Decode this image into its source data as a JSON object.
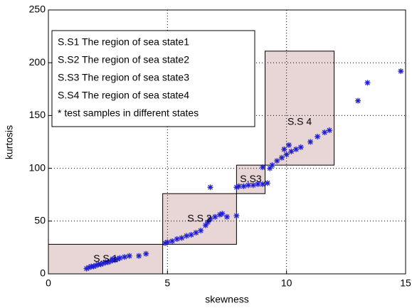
{
  "chart_data": {
    "type": "scatter",
    "xlabel": "skewness",
    "ylabel": "kurtosis",
    "xlim": [
      0,
      15
    ],
    "ylim": [
      0,
      250
    ],
    "xticks": [
      0,
      5,
      10,
      15
    ],
    "yticks": [
      0,
      50,
      100,
      150,
      200,
      250
    ],
    "grid": true,
    "legend": [
      "S.S1 The region of sea state1",
      "S.S2 The region of sea state2",
      "S.S3 The region of sea state3",
      "S.S4 The region of sea state4",
      "* test samples in different states"
    ],
    "regions": [
      {
        "label": "S.S 1",
        "x": [
          0,
          4.8
        ],
        "y": [
          0,
          28
        ],
        "color": "#e8d5d5"
      },
      {
        "label": "S.S 2",
        "x": [
          4.8,
          7.9
        ],
        "y": [
          28,
          76
        ],
        "color": "#e8d5d5"
      },
      {
        "label": "S.S3",
        "x": [
          7.9,
          9.1
        ],
        "y": [
          76,
          103
        ],
        "color": "#e8d5d5"
      },
      {
        "label": "S.S 4",
        "x": [
          9.1,
          12
        ],
        "y": [
          103,
          211
        ],
        "color": "#e8d5d5"
      }
    ],
    "series": [
      {
        "color": "#1f1fd0",
        "x": [
          1.6,
          1.7,
          1.8,
          1.9,
          2.0,
          2.1,
          2.2,
          2.3,
          2.4,
          2.5,
          2.6,
          2.7,
          2.8,
          2.9,
          3.0,
          3.2,
          3.4,
          3.8,
          4.1,
          2.7,
          4.9,
          5.0,
          5.2,
          5.4,
          5.6,
          5.8,
          6.0,
          6.2,
          6.4,
          6.6,
          6.7,
          6.8,
          7.0,
          7.2,
          7.3,
          7.5,
          6.8,
          7.9,
          7.9,
          8.0,
          8.2,
          8.4,
          8.6,
          8.8,
          9.0,
          9.2,
          9.0,
          9.3,
          9.4,
          9.6,
          9.8,
          10.0,
          10.2,
          10.4,
          10.6,
          9.9,
          10.1,
          11.0,
          11.3,
          11.6,
          11.8,
          13.0,
          13.4,
          14.8
        ],
        "values": [
          5,
          6,
          7,
          7,
          8,
          9,
          9,
          10,
          11,
          11,
          12,
          13,
          13,
          14,
          15,
          16,
          17,
          17,
          19,
          14,
          29,
          30,
          31,
          33,
          34,
          36,
          37,
          39,
          41,
          46,
          49,
          52,
          54,
          56,
          57,
          54,
          82,
          55,
          82,
          83,
          83,
          84,
          84,
          85,
          85,
          86,
          101,
          100,
          103,
          107,
          110,
          113,
          116,
          118,
          120,
          118,
          122,
          125,
          130,
          134,
          136,
          164,
          181,
          192
        ]
      }
    ]
  }
}
